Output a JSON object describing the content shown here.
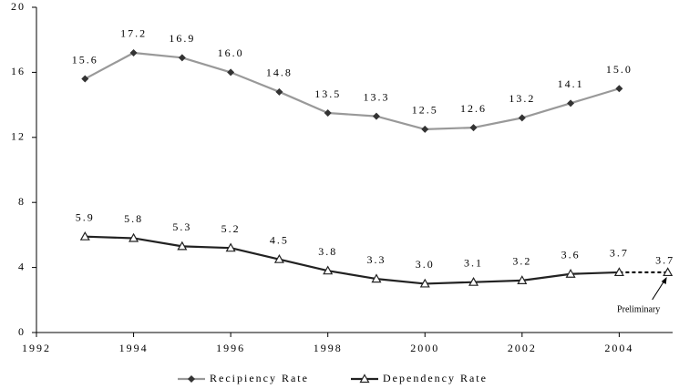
{
  "chart_data": {
    "type": "line",
    "x": [
      1993,
      1994,
      1995,
      1996,
      1997,
      1998,
      1999,
      2000,
      2001,
      2002,
      2003,
      2004,
      2005
    ],
    "series": [
      {
        "name": "Recipiency Rate",
        "color": "#999999",
        "marker_color": "#333333",
        "marker": "diamond",
        "values": [
          15.6,
          17.2,
          16.9,
          16.0,
          14.8,
          13.5,
          13.3,
          12.5,
          12.6,
          13.2,
          14.1,
          15.0,
          null
        ],
        "value_labels": [
          "15.6",
          "17.2",
          "16.9",
          "16.0",
          "14.8",
          "13.5",
          "13.3",
          "12.5",
          "12.6",
          "13.2",
          "14.1",
          "15.0",
          null
        ]
      },
      {
        "name": "Dependency Rate",
        "color": "#222222",
        "marker_color": "#222222",
        "marker": "triangle",
        "values": [
          5.9,
          5.8,
          5.3,
          5.2,
          4.5,
          3.8,
          3.3,
          3.0,
          3.1,
          3.2,
          3.6,
          3.7,
          3.7
        ],
        "value_labels": [
          "5.9",
          "5.8",
          "5.3",
          "5.2",
          "4.5",
          "3.8",
          "3.3",
          "3.0",
          "3.1",
          "3.2",
          "3.6",
          "3.7",
          "3.7"
        ]
      }
    ],
    "xlim": [
      1992,
      2005.1
    ],
    "xticks": [
      1992,
      1994,
      1996,
      1998,
      2000,
      2002,
      2004
    ],
    "ylim": [
      0,
      20
    ],
    "yticks": [
      0,
      4,
      8,
      12,
      16,
      20
    ],
    "grid": false,
    "legend": "bottom",
    "annotation": {
      "text": "Preliminary",
      "x": 2005
    }
  }
}
